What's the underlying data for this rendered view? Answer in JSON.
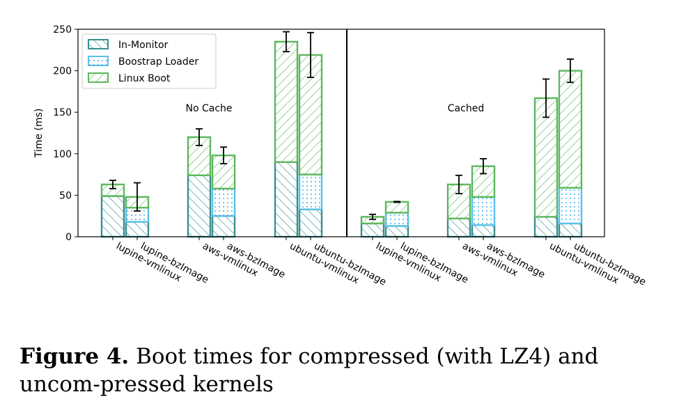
{
  "chart_data": {
    "type": "bar",
    "stacked": true,
    "ylabel": "Time (ms)",
    "ylim": [
      0,
      250
    ],
    "yticks": [
      0,
      50,
      100,
      150,
      200,
      250
    ],
    "grid": false,
    "legend_position": "top-left",
    "groups": [
      {
        "label": "No Cache",
        "categories": [
          "lupine-vmlinux",
          "lupine-bzImage",
          "aws-vmlinux",
          "aws-bzImage",
          "ubuntu-vmlinux",
          "ubuntu-bzImage"
        ],
        "series": [
          {
            "name": "In-Monitor",
            "values": [
              49,
              18,
              74,
              25,
              90,
              33
            ]
          },
          {
            "name": "Boostrap Loader",
            "values": [
              0,
              17,
              0,
              33,
              0,
              42
            ]
          },
          {
            "name": "Linux Boot",
            "values": [
              14,
              13,
              46,
              40,
              145,
              144
            ]
          }
        ],
        "error": [
          5,
          17,
          10,
          10,
          12,
          27
        ]
      },
      {
        "label": "Cached",
        "categories": [
          "lupine-vmlinux",
          "lupine-bzImage",
          "aws-vmlinux",
          "aws-bzImage",
          "ubuntu-vmlinux",
          "ubuntu-bzImage"
        ],
        "series": [
          {
            "name": "In-Monitor",
            "values": [
              16,
              13,
              22,
              14,
              24,
              16
            ]
          },
          {
            "name": "Boostrap Loader",
            "values": [
              0,
              16,
              0,
              34,
              0,
              43
            ]
          },
          {
            "name": "Linux Boot",
            "values": [
              8,
              13,
              41,
              37,
              143,
              141
            ]
          }
        ],
        "error": [
          3,
          0.5,
          11,
          9,
          23,
          14
        ]
      }
    ],
    "colors": {
      "In-Monitor": "#3a8f8f",
      "Boostrap Loader": "#5bc0eb",
      "Linux Boot": "#5cb85c"
    }
  },
  "caption": {
    "label": "Figure 4.",
    "text": " Boot times for compressed (with LZ4) and uncom-pressed kernels"
  }
}
